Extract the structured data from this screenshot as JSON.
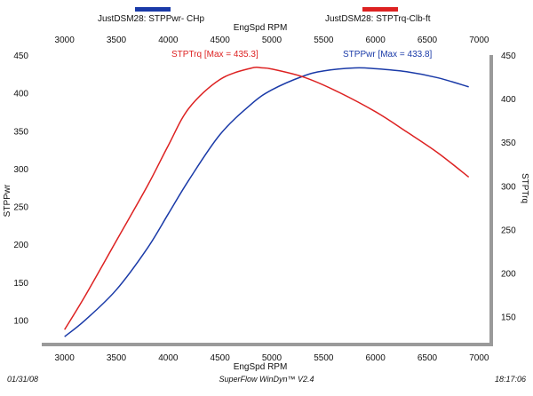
{
  "chart_data": {
    "type": "line",
    "legend": [
      {
        "name": "JustDSM28: STPPwr- CHp",
        "color": "#1a3aa8"
      },
      {
        "name": "JustDSM28: STPTrq-Clb-ft",
        "color": "#dd2222"
      }
    ],
    "xlabel_top": "EngSpd  RPM",
    "xlabel_bottom": "EngSpd  RPM",
    "ylabel_left": "STPPwr",
    "ylabel_right": "STPTrq",
    "xlim": [
      2780,
      7100
    ],
    "x_ticks": [
      "3000",
      "3500",
      "4000",
      "4500",
      "5000",
      "5500",
      "6000",
      "6500",
      "7000"
    ],
    "ylim_left": [
      70,
      450
    ],
    "y_ticks_left": [
      "100",
      "150",
      "200",
      "250",
      "300",
      "350",
      "400",
      "450"
    ],
    "ylim_right": [
      120,
      450
    ],
    "y_ticks_right": [
      "150",
      "200",
      "250",
      "300",
      "350",
      "400",
      "450"
    ],
    "series": [
      {
        "name": "STPPwr",
        "axis": "left",
        "color": "#1a3aa8",
        "x": [
          3000,
          3200,
          3500,
          3800,
          4000,
          4200,
          4500,
          4800,
          5000,
          5300,
          5500,
          5800,
          6000,
          6300,
          6600,
          6900
        ],
        "y": [
          78,
          100,
          140,
          195,
          240,
          285,
          345,
          385,
          404,
          422,
          429,
          433,
          432,
          428,
          420,
          408
        ]
      },
      {
        "name": "STPTrq",
        "axis": "right",
        "color": "#dd2222",
        "x": [
          3000,
          3200,
          3500,
          3800,
          4000,
          4200,
          4500,
          4800,
          4900,
          5000,
          5300,
          5600,
          6000,
          6300,
          6600,
          6900
        ],
        "y": [
          135,
          174,
          237,
          300,
          346,
          389,
          422,
          435,
          435.3,
          434,
          425,
          410,
          385,
          362,
          338,
          310
        ]
      }
    ],
    "annotations": [
      {
        "text": "STPTrq [Max = 435.3]",
        "color": "#dd2222"
      },
      {
        "text": "STPPwr [Max = 433.8]",
        "color": "#1a3aa8"
      }
    ]
  },
  "footer": {
    "date": "01/31/08",
    "software": "SuperFlow WinDyn™ V2.4",
    "time": "18:17:06"
  }
}
